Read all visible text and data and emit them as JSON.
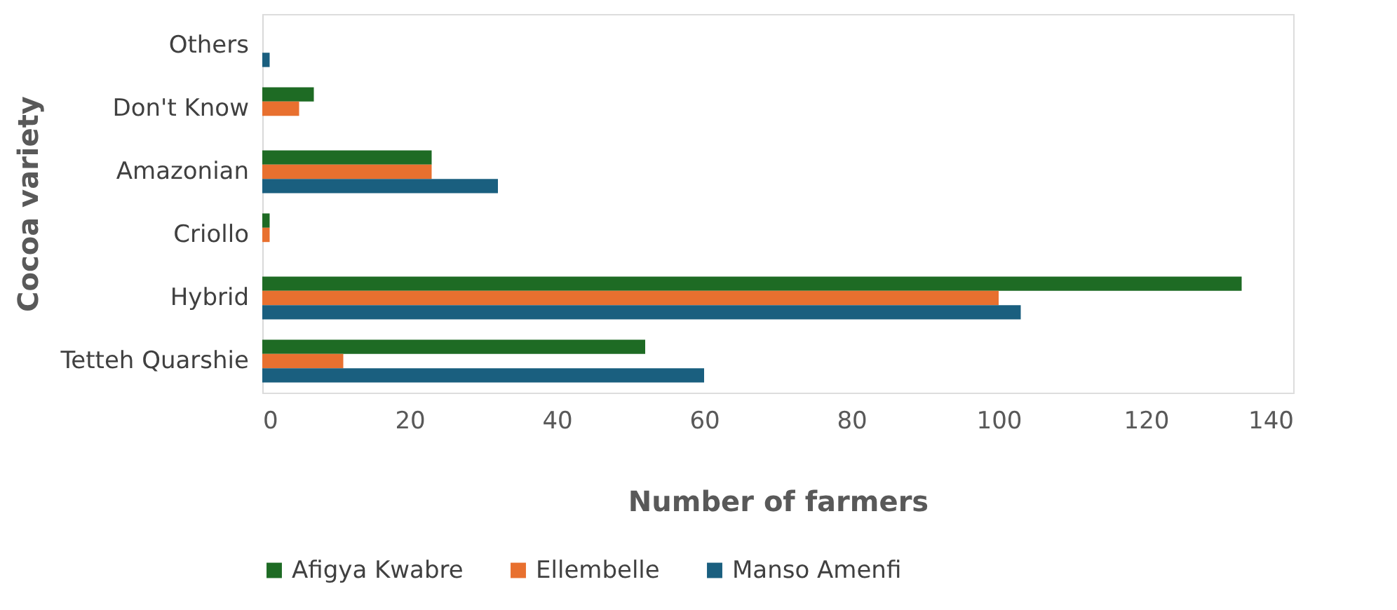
{
  "chart_data": {
    "type": "bar",
    "orientation": "horizontal",
    "xlabel": "Number of farmers",
    "ylabel": "Cocoa variety",
    "categories": [
      "Others",
      "Don't Know",
      "Amazonian",
      "Criollo",
      "Hybrid",
      "Tetteh Quarshie"
    ],
    "series": [
      {
        "name": "Afigya Kwabre",
        "color": "#1e6b24",
        "values": [
          0,
          7,
          23,
          1,
          133,
          52
        ]
      },
      {
        "name": "Ellembelle",
        "color": "#e8702f",
        "values": [
          0,
          5,
          23,
          1,
          100,
          11
        ]
      },
      {
        "name": "Manso Amenfi",
        "color": "#1a5f7f",
        "values": [
          1,
          0,
          32,
          0,
          103,
          60
        ]
      }
    ],
    "xlim": [
      0,
      140
    ],
    "xticks": [
      0,
      20,
      40,
      60,
      80,
      100,
      120,
      140
    ],
    "grid": false,
    "legend": "bottom"
  }
}
